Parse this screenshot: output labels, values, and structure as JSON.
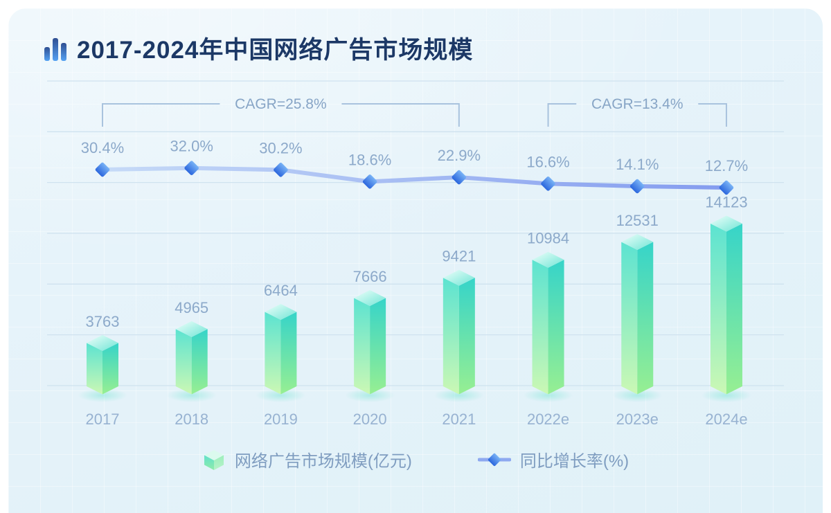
{
  "title": {
    "text": "2017-2024年中国网络广告市场规模",
    "icon": "bar-chart-icon"
  },
  "chart_data": {
    "type": "bar+line combo",
    "categories": [
      "2017",
      "2018",
      "2019",
      "2020",
      "2021",
      "2022e",
      "2023e",
      "2024e"
    ],
    "series": [
      {
        "name": "网络广告市场规模(亿元)",
        "type": "bar",
        "values": [
          3763,
          4965,
          6464,
          7666,
          9421,
          10984,
          12531,
          14123
        ],
        "bar_style": "3d-isometric",
        "color_top": "#effffb",
        "color_front_start": "#5ce3d1",
        "color_front_end": "#cbf8b4",
        "color_side_start": "#36d4c9",
        "color_side_end": "#97ef92"
      },
      {
        "name": "同比增长率(%)",
        "type": "line",
        "values": [
          30.4,
          32.0,
          30.2,
          18.6,
          22.9,
          16.6,
          14.1,
          12.7
        ],
        "marker": "diamond",
        "line_color_start": "#c3d8f7",
        "line_color_end": "#7b94ee",
        "marker_color_start": "#79b3f6",
        "marker_color_end": "#2b66dd",
        "label_format": "{value}%"
      }
    ],
    "annotations": [
      {
        "label": "CAGR=25.8%",
        "from_index": 0,
        "to_index": 4
      },
      {
        "label": "CAGR=13.4%",
        "from_index": 5,
        "to_index": 7
      }
    ],
    "grid": "horizontal-lines-on",
    "legend_position": "bottom",
    "value_labels": "shown-above-bars",
    "background": "#e6f2f9",
    "title_color": "#1c3866",
    "label_color": "#8ca9ca",
    "axis_label_color": "#97b2d1",
    "gridline_color": "#cfe2ef",
    "bracket_color": "#a9c3de"
  },
  "legend": {
    "items": [
      {
        "label": "网络广告市场规模(亿元)",
        "icon": "cube-3d-icon"
      },
      {
        "label": "同比增长率(%)",
        "icon": "diamond-line-icon"
      }
    ]
  }
}
